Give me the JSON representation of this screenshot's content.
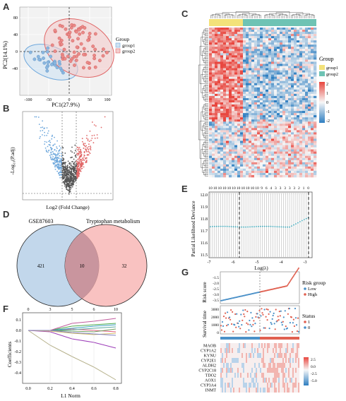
{
  "panels": {
    "A": "A",
    "B": "B",
    "C": "C",
    "D": "D",
    "E": "E",
    "F": "F",
    "G": "G"
  },
  "pca": {
    "xlabel": "PC1(27.9%)",
    "ylabel": "PC2(14.1%)",
    "xticks": [
      "-100",
      "-50",
      "0",
      "50",
      "100"
    ],
    "yticks": [
      "80",
      "40",
      "0",
      "-40"
    ],
    "legend_title": "Group",
    "groups": [
      "group1",
      "group2"
    ],
    "colors": {
      "group1": "#6fa8dc",
      "group2": "#e06666"
    }
  },
  "volcano": {
    "xlabel": "Log2 (Fold Change)",
    "ylabel": "-Log₁₀(P.adj)"
  },
  "venn": {
    "left_label": "GSE87603",
    "right_label": "Tryptophan metabolism",
    "left_only": "421",
    "overlap": "10",
    "right_only": "32"
  },
  "heatmap": {
    "legend_title": "Group",
    "groups": [
      "group1",
      "group2"
    ],
    "group_colors": [
      "#f3e27a",
      "#6ec3b4"
    ],
    "scale_ticks": [
      "2",
      "1",
      "0",
      "-1",
      "-2"
    ]
  },
  "lasso_cv": {
    "ylabel": "Partial Likelihood Deviance",
    "xlabel": "Log(λ)",
    "yticks": [
      "12.0",
      "11.9",
      "11.8",
      "11.7",
      "11.6",
      "11.5"
    ],
    "xticks": [
      "-7",
      "-6",
      "-5",
      "-4",
      "-3"
    ],
    "top_counts": [
      "10",
      "10",
      "10",
      "10",
      "10",
      "10",
      "10",
      "10",
      "10",
      "10",
      "10",
      "9",
      "6",
      "4",
      "3",
      "3",
      "3",
      "3",
      "3",
      "2",
      "1",
      "0"
    ]
  },
  "lasso_path": {
    "ylabel": "Coefficients",
    "xlabel": "L1 Norm",
    "yticks": [
      "0.1",
      "0.0",
      "-0.1",
      "-0.2",
      "-0.3",
      "-0.4"
    ],
    "xticks": [
      "0.0",
      "0.2",
      "0.4",
      "0.6",
      "0.8"
    ],
    "top_ticks": [
      "0",
      "3",
      "5",
      "6",
      "10"
    ]
  },
  "risk": {
    "score_label": "Risk score",
    "score_ticks": [
      "-1.5",
      "-2.0",
      "-2.5",
      "-3.0",
      "-3.5"
    ],
    "risk_group_title": "Risk group",
    "risk_groups": [
      "Low",
      "High"
    ],
    "survival_label": "Survival time",
    "survival_ticks": [
      "3000",
      "2000",
      "1000",
      "0"
    ],
    "status_title": "Status",
    "status_values": [
      "1",
      "0"
    ],
    "genes": [
      "MAOB",
      "CYP1A2",
      "KYNU",
      "CYP2E1",
      "ALDH2",
      "CYP2C18",
      "TDO2",
      "AOX1",
      "CYP3A4",
      "INMT"
    ],
    "scale_ticks": [
      "2.5",
      "0.0",
      "-2.5",
      "-5.0"
    ]
  }
}
